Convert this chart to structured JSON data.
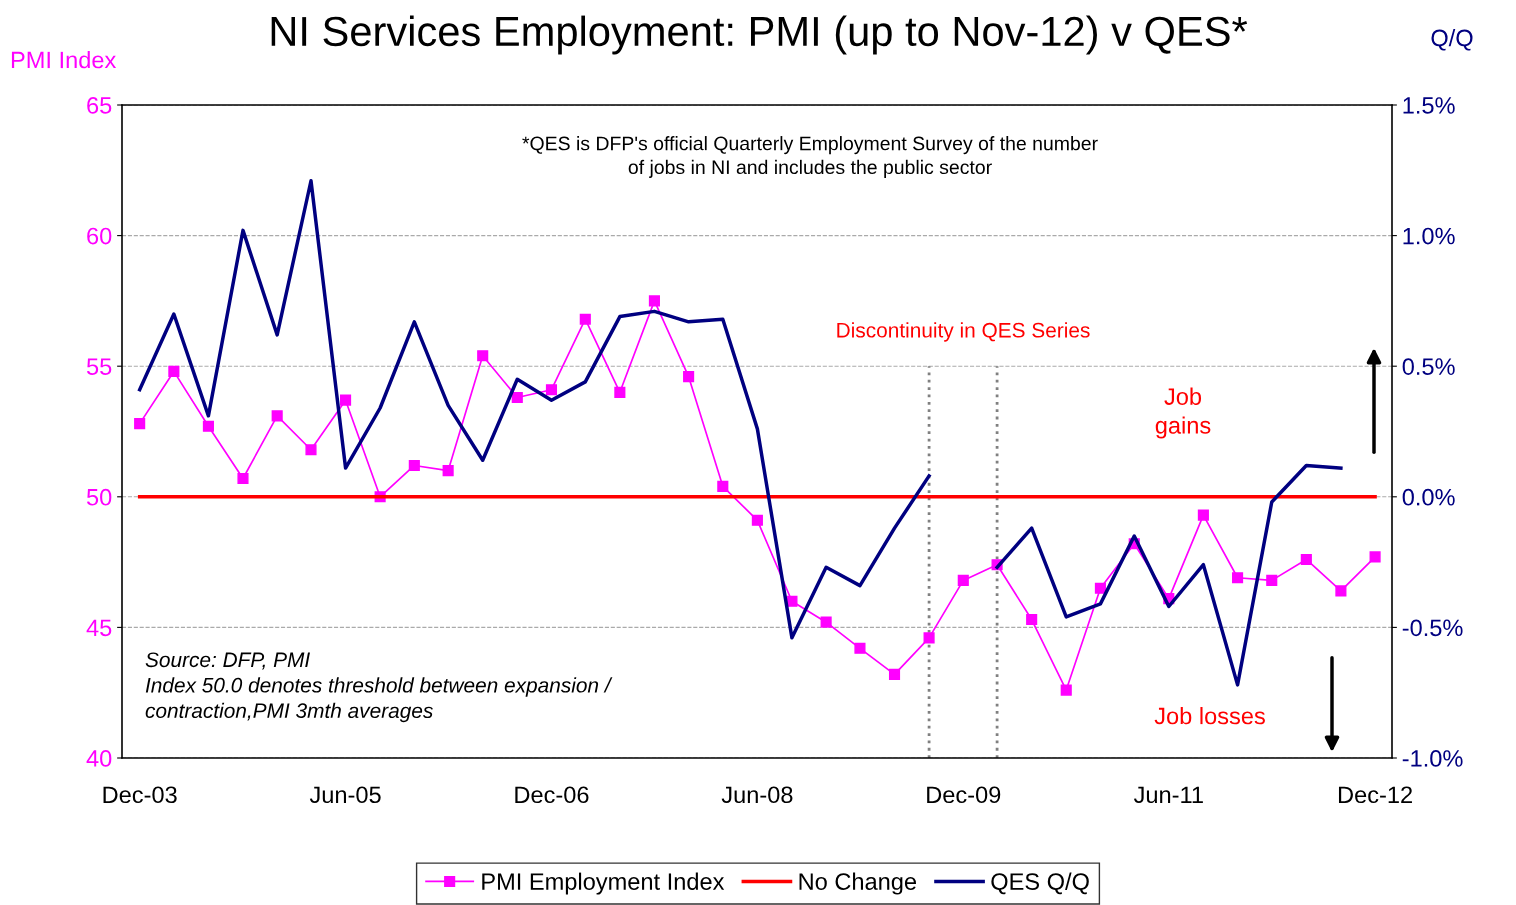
{
  "chart_data": {
    "type": "line",
    "title": "NI Services Employment: PMI (up to Nov-12) v QES*",
    "ylabel": "PMI Index",
    "y2label": "Q/Q",
    "x": [
      "2003-12",
      "2004-03",
      "2004-06",
      "2004-09",
      "2004-12",
      "2005-03",
      "2005-06",
      "2005-09",
      "2005-12",
      "2006-03",
      "2006-06",
      "2006-09",
      "2006-12",
      "2007-03",
      "2007-06",
      "2007-09",
      "2007-12",
      "2008-03",
      "2008-06",
      "2008-09",
      "2008-12",
      "2009-03",
      "2009-06",
      "2009-09",
      "2009-12",
      "2010-03",
      "2010-06",
      "2010-09",
      "2010-12",
      "2011-03",
      "2011-06",
      "2011-09",
      "2011-12",
      "2012-03",
      "2012-06",
      "2012-09",
      "2012-12"
    ],
    "series": [
      {
        "name": "PMI Employment Index",
        "color": "#ff00ff",
        "marker": "square",
        "values": [
          52.8,
          54.8,
          52.7,
          50.7,
          53.1,
          51.8,
          53.7,
          50.0,
          51.2,
          51.0,
          55.4,
          53.8,
          54.1,
          56.8,
          54.0,
          57.5,
          54.6,
          50.4,
          49.1,
          46.0,
          45.2,
          44.2,
          43.2,
          44.6,
          46.8,
          47.4,
          45.3,
          42.6,
          46.5,
          48.2,
          46.1,
          49.3,
          46.9,
          46.8,
          47.6,
          46.4,
          47.7
        ]
      },
      {
        "name": "No Change",
        "color": "#ff0000",
        "values": [
          50,
          50,
          50,
          50,
          50,
          50,
          50,
          50,
          50,
          50,
          50,
          50,
          50,
          50,
          50,
          50,
          50,
          50,
          50,
          50,
          50,
          50,
          50,
          50,
          50,
          50,
          50,
          50,
          50,
          50,
          50,
          50,
          50,
          50,
          50,
          50,
          50
        ]
      },
      {
        "name": "QES Q/Q",
        "color": "#000080",
        "axis": "y2",
        "values": [
          0.41,
          0.7,
          0.31,
          1.02,
          0.62,
          1.21,
          0.11,
          0.34,
          0.67,
          0.35,
          0.14,
          0.45,
          0.37,
          0.44,
          0.69,
          0.71,
          0.67,
          0.68,
          0.26,
          -0.54,
          -0.27,
          -0.34,
          -0.12,
          0.08,
          null,
          -0.27,
          -0.12,
          -0.46,
          -0.41,
          -0.15,
          -0.42,
          -0.26,
          -0.72,
          -0.02,
          0.12,
          0.11,
          null
        ]
      }
    ],
    "xlim": [
      "2003-10-15",
      "2013-01-15"
    ],
    "xticks": [
      {
        "value": "2003-12",
        "label": "Dec-03"
      },
      {
        "value": "2005-06",
        "label": "Jun-05"
      },
      {
        "value": "2006-12",
        "label": "Dec-06"
      },
      {
        "value": "2008-06",
        "label": "Jun-08"
      },
      {
        "value": "2009-12",
        "label": "Dec-09"
      },
      {
        "value": "2011-06",
        "label": "Jun-11"
      },
      {
        "value": "2012-12",
        "label": "Dec-12"
      }
    ],
    "ylim": [
      40,
      65
    ],
    "yticks": [
      40,
      45,
      50,
      55,
      60,
      65
    ],
    "y2lim": [
      -1.0,
      1.5
    ],
    "y2ticks": [
      {
        "value": -1.0,
        "label": "-1.0%"
      },
      {
        "value": -0.5,
        "label": "-0.5%"
      },
      {
        "value": 0,
        "label": "0.0%"
      },
      {
        "value": 0.5,
        "label": "0.5%"
      },
      {
        "value": 1.0,
        "label": "1.0%"
      },
      {
        "value": 1.5,
        "label": "1.5%"
      }
    ],
    "ref_lines": [
      {
        "axis": "x",
        "value": "2009-09",
        "color": "#808080",
        "line_style": "dotted"
      },
      {
        "axis": "x",
        "value": "2010-03",
        "color": "#808080",
        "line_style": "dotted"
      }
    ],
    "annotations": [
      "*QES is DFP's official Quarterly Employment Survey of the number\nof jobs in NI and includes the public sector",
      "Discontinuity in QES Series",
      "Job\ngains",
      "Job losses",
      "Source: DFP, PMI\nIndex 50.0 denotes threshold between expansion /\ncontraction,PMI 3mth averages"
    ],
    "grid": "y",
    "legend": "bottom"
  }
}
